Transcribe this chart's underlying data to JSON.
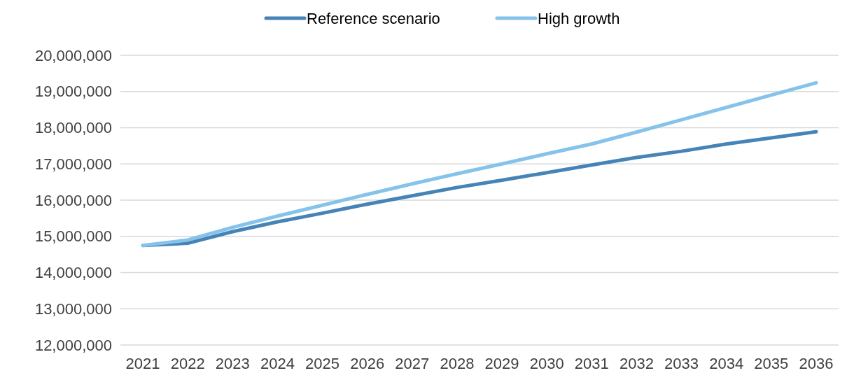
{
  "chart_data": {
    "type": "line",
    "categories": [
      "2021",
      "2022",
      "2023",
      "2024",
      "2025",
      "2026",
      "2027",
      "2028",
      "2029",
      "2030",
      "2031",
      "2032",
      "2033",
      "2034",
      "2035",
      "2036"
    ],
    "series": [
      {
        "name": "Reference scenario",
        "color": "#4683b7",
        "values": [
          14750000,
          14810000,
          15130000,
          15400000,
          15640000,
          15890000,
          16120000,
          16350000,
          16550000,
          16760000,
          16970000,
          17180000,
          17350000,
          17550000,
          17720000,
          17890000
        ]
      },
      {
        "name": "High growth",
        "color": "#85c3ea",
        "values": [
          14750000,
          14900000,
          15250000,
          15560000,
          15860000,
          16160000,
          16450000,
          16730000,
          17000000,
          17280000,
          17550000,
          17880000,
          18220000,
          18560000,
          18900000,
          19240000
        ]
      }
    ],
    "ylim": [
      12000000,
      20000000
    ],
    "yticks": [
      {
        "value": 12000000,
        "label": "12,000,000"
      },
      {
        "value": 13000000,
        "label": "13,000,000"
      },
      {
        "value": 14000000,
        "label": "14,000,000"
      },
      {
        "value": 15000000,
        "label": "15,000,000"
      },
      {
        "value": 16000000,
        "label": "16,000,000"
      },
      {
        "value": 17000000,
        "label": "17,000,000"
      },
      {
        "value": 18000000,
        "label": "18,000,000"
      },
      {
        "value": 19000000,
        "label": "19,000,000"
      },
      {
        "value": 20000000,
        "label": "20,000,000"
      }
    ],
    "grid": "y",
    "legend": "top",
    "marker": "none",
    "line_style": "solid"
  }
}
